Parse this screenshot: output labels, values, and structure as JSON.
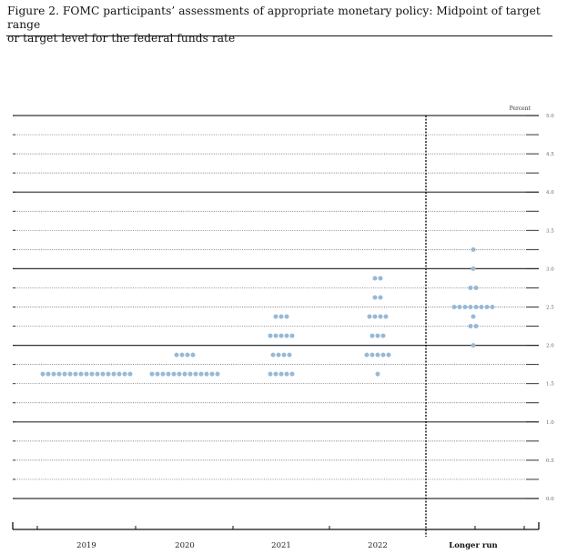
{
  "figure": {
    "caption_line1": "Figure 2.  FOMC participants’ assessments of appropriate monetary policy:  Midpoint of target range",
    "caption_line2": "or target level for the federal funds rate"
  },
  "chart_data": {
    "type": "scatter",
    "unit_label": "Percent",
    "ylim": [
      0,
      5
    ],
    "y_ticks": [
      "0.0",
      "0.5",
      "1.0",
      "1.5",
      "2.0",
      "2.5",
      "3.0",
      "3.5",
      "4.0",
      "4.5",
      "5.0"
    ],
    "categories": [
      "2019",
      "2020",
      "2021",
      "2022",
      "Longer run"
    ],
    "dot_color": "#97b9d6",
    "grid": true,
    "dots": [
      {
        "category": "2019",
        "rates": [
          {
            "y": 1.625,
            "count": 17
          }
        ]
      },
      {
        "category": "2020",
        "rates": [
          {
            "y": 1.625,
            "count": 13
          },
          {
            "y": 1.875,
            "count": 4
          }
        ]
      },
      {
        "category": "2021",
        "rates": [
          {
            "y": 1.625,
            "count": 5
          },
          {
            "y": 1.875,
            "count": 4
          },
          {
            "y": 2.125,
            "count": 5
          },
          {
            "y": 2.375,
            "count": 3
          }
        ]
      },
      {
        "category": "2022",
        "rates": [
          {
            "y": 1.625,
            "count": 1
          },
          {
            "y": 1.875,
            "count": 5
          },
          {
            "y": 2.125,
            "count": 3
          },
          {
            "y": 2.375,
            "count": 4
          },
          {
            "y": 2.625,
            "count": 2
          },
          {
            "y": 2.875,
            "count": 2
          }
        ]
      },
      {
        "category": "Longer run",
        "rates": [
          {
            "y": 2.0,
            "count": 1
          },
          {
            "y": 2.25,
            "count": 2
          },
          {
            "y": 2.375,
            "count": 1
          },
          {
            "y": 2.5,
            "count": 8
          },
          {
            "y": 2.75,
            "count": 2
          },
          {
            "y": 3.0,
            "count": 1
          },
          {
            "y": 3.25,
            "count": 1
          }
        ]
      }
    ]
  }
}
